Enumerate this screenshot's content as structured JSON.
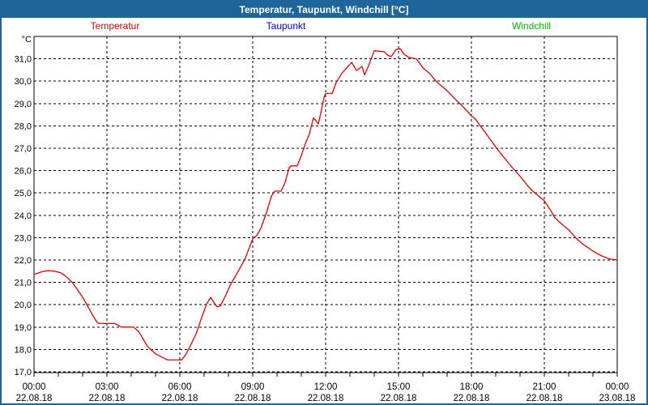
{
  "window": {
    "title": "Temperatur, Taupunkt, Windchill [°C]"
  },
  "colors": {
    "titlebar": "#1e6699",
    "window_border": "#1e6699",
    "axis": "#000000",
    "plot_background": "#ffffff"
  },
  "chart_data": {
    "type": "line",
    "title": "Temperatur, Taupunkt, Windchill [°C]",
    "ylabel": "°C",
    "ylim": [
      17,
      32
    ],
    "y_tick_step": 1.0,
    "y_tick_labels": [
      "17,0",
      "18,0",
      "19,0",
      "20,0",
      "21,0",
      "22,0",
      "23,0",
      "24,0",
      "25,0",
      "26,0",
      "27,0",
      "28,0",
      "29,0",
      "30,0",
      "31,0"
    ],
    "grid": "dashed",
    "legend_position": "top",
    "x_hours_range": [
      0,
      24
    ],
    "x_ticks": [
      {
        "hour": 0,
        "time": "00:00",
        "date": "22.08.18"
      },
      {
        "hour": 3,
        "time": "03:00",
        "date": "22.08.18"
      },
      {
        "hour": 6,
        "time": "06:00",
        "date": "22.08.18"
      },
      {
        "hour": 9,
        "time": "09:00",
        "date": "22.08.18"
      },
      {
        "hour": 12,
        "time": "12:00",
        "date": "22.08.18"
      },
      {
        "hour": 15,
        "time": "15:00",
        "date": "22.08.18"
      },
      {
        "hour": 18,
        "time": "18:00",
        "date": "22.08.18"
      },
      {
        "hour": 21,
        "time": "21:00",
        "date": "22.08.18"
      },
      {
        "hour": 24,
        "time": "00:00",
        "date": "23.08.18"
      }
    ],
    "series": [
      {
        "name": "Temperatur",
        "color": "#e00000",
        "points": [
          [
            0.0,
            21.35
          ],
          [
            0.33,
            21.48
          ],
          [
            0.57,
            21.52
          ],
          [
            0.83,
            21.5
          ],
          [
            1.1,
            21.43
          ],
          [
            1.33,
            21.25
          ],
          [
            1.57,
            21.0
          ],
          [
            1.77,
            20.7
          ],
          [
            2.0,
            20.33
          ],
          [
            2.23,
            19.9
          ],
          [
            2.4,
            19.55
          ],
          [
            2.57,
            19.25
          ],
          [
            2.67,
            19.16
          ],
          [
            3.33,
            19.16
          ],
          [
            3.5,
            19.05
          ],
          [
            3.6,
            19.0
          ],
          [
            4.1,
            19.0
          ],
          [
            4.33,
            18.76
          ],
          [
            4.5,
            18.45
          ],
          [
            4.67,
            18.13
          ],
          [
            5.0,
            17.8
          ],
          [
            5.33,
            17.62
          ],
          [
            5.5,
            17.53
          ],
          [
            6.07,
            17.53
          ],
          [
            6.23,
            17.74
          ],
          [
            6.43,
            18.16
          ],
          [
            6.67,
            18.7
          ],
          [
            6.9,
            19.43
          ],
          [
            7.1,
            20.03
          ],
          [
            7.27,
            20.33
          ],
          [
            7.4,
            20.1
          ],
          [
            7.53,
            19.91
          ],
          [
            7.67,
            19.95
          ],
          [
            7.9,
            20.45
          ],
          [
            8.1,
            20.93
          ],
          [
            8.33,
            21.36
          ],
          [
            8.67,
            22.02
          ],
          [
            9.0,
            22.95
          ],
          [
            9.17,
            23.11
          ],
          [
            9.33,
            23.41
          ],
          [
            9.57,
            24.14
          ],
          [
            9.77,
            24.86
          ],
          [
            9.9,
            25.08
          ],
          [
            10.17,
            25.08
          ],
          [
            10.33,
            25.47
          ],
          [
            10.5,
            26.13
          ],
          [
            10.57,
            26.21
          ],
          [
            10.83,
            26.21
          ],
          [
            11.0,
            26.67
          ],
          [
            11.17,
            27.22
          ],
          [
            11.33,
            27.64
          ],
          [
            11.5,
            28.36
          ],
          [
            11.63,
            28.2
          ],
          [
            11.7,
            28.08
          ],
          [
            11.83,
            28.72
          ],
          [
            11.93,
            29.26
          ],
          [
            12.0,
            29.45
          ],
          [
            12.27,
            29.45
          ],
          [
            12.43,
            29.93
          ],
          [
            12.67,
            30.36
          ],
          [
            12.87,
            30.6
          ],
          [
            13.07,
            30.84
          ],
          [
            13.27,
            30.48
          ],
          [
            13.5,
            30.66
          ],
          [
            13.6,
            30.28
          ],
          [
            13.77,
            30.7
          ],
          [
            14.0,
            31.36
          ],
          [
            14.4,
            31.32
          ],
          [
            14.57,
            31.15
          ],
          [
            14.7,
            31.1
          ],
          [
            14.9,
            31.42
          ],
          [
            15.07,
            31.45
          ],
          [
            15.23,
            31.2
          ],
          [
            15.43,
            31.06
          ],
          [
            15.73,
            31.0
          ],
          [
            15.87,
            30.8
          ],
          [
            16.0,
            30.6
          ],
          [
            16.27,
            30.35
          ],
          [
            16.5,
            30.05
          ],
          [
            16.67,
            29.87
          ],
          [
            17.0,
            29.57
          ],
          [
            17.33,
            29.2
          ],
          [
            17.67,
            28.84
          ],
          [
            18.0,
            28.45
          ],
          [
            18.17,
            28.3
          ],
          [
            18.33,
            28.05
          ],
          [
            18.67,
            27.55
          ],
          [
            19.0,
            27.05
          ],
          [
            19.33,
            26.6
          ],
          [
            19.67,
            26.15
          ],
          [
            20.0,
            25.75
          ],
          [
            20.33,
            25.3
          ],
          [
            20.5,
            25.1
          ],
          [
            21.0,
            24.65
          ],
          [
            21.27,
            24.2
          ],
          [
            21.43,
            23.9
          ],
          [
            21.67,
            23.65
          ],
          [
            22.0,
            23.35
          ],
          [
            22.33,
            22.95
          ],
          [
            22.6,
            22.7
          ],
          [
            23.0,
            22.4
          ],
          [
            23.33,
            22.2
          ],
          [
            23.67,
            22.05
          ],
          [
            24.0,
            22.0
          ]
        ]
      },
      {
        "name": "Taupunkt",
        "color": "#0000dd",
        "points": []
      },
      {
        "name": "Windchill",
        "color": "#00bb00",
        "points": []
      }
    ]
  }
}
